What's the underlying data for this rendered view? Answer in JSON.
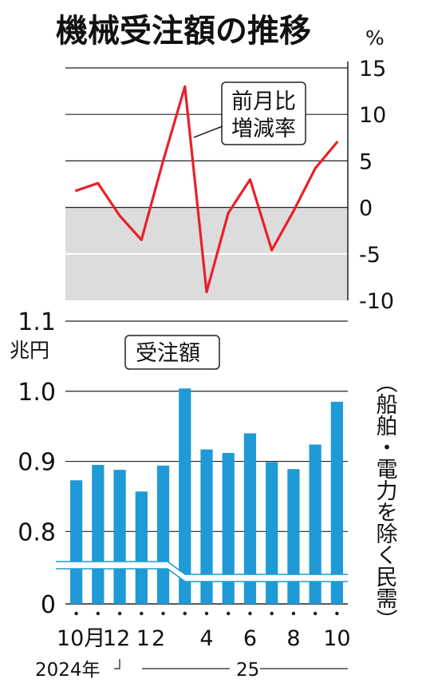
{
  "title": "機械受注額の推移",
  "colors": {
    "line": "#e8202a",
    "bar": "#1f9ad6",
    "shade": "#dcdcdc",
    "grid": "#222222"
  },
  "chart_data": [
    {
      "type": "line",
      "unit_label": "%",
      "annotation_lines": [
        "前月比",
        "増減率"
      ],
      "y_ticks": [
        "15",
        "10",
        "5",
        "0",
        "-5",
        "-10"
      ],
      "ylim": [
        -10,
        15
      ],
      "grid": true,
      "negative_region_shaded": true,
      "x": [
        "2024-10",
        "2024-11",
        "2024-12",
        "2025-01",
        "2025-02",
        "2025-03",
        "2025-04",
        "2025-05",
        "2025-06",
        "2025-07",
        "2025-08",
        "2025-09",
        "2025-10"
      ],
      "values": [
        1.8,
        2.6,
        -0.9,
        -3.5,
        5.0,
        13.0,
        -9.1,
        -0.6,
        3.0,
        -4.6,
        -0.4,
        4.2,
        7.0
      ]
    },
    {
      "type": "bar",
      "unit_label": "兆円",
      "annotation": "受注額",
      "side_note": "（船舶・電力を除く民需）",
      "y_ticks": [
        "1.1",
        "1.0",
        "0.9",
        "0.8",
        "0"
      ],
      "axis_break": true,
      "ylim": [
        0.74,
        1.1
      ],
      "grid": true,
      "x_tick_labels": [
        "10月",
        "12",
        "1",
        "2",
        "4",
        "6",
        "8",
        "10"
      ],
      "year_labels": [
        "2024年",
        "25"
      ],
      "categories": [
        "2024-10",
        "2024-11",
        "2024-12",
        "2025-01",
        "2025-02",
        "2025-03",
        "2025-04",
        "2025-05",
        "2025-06",
        "2025-07",
        "2025-08",
        "2025-09",
        "2025-10"
      ],
      "values": [
        0.873,
        0.895,
        0.888,
        0.857,
        0.894,
        1.004,
        0.917,
        0.912,
        0.94,
        0.899,
        0.889,
        0.924,
        0.985
      ]
    }
  ]
}
